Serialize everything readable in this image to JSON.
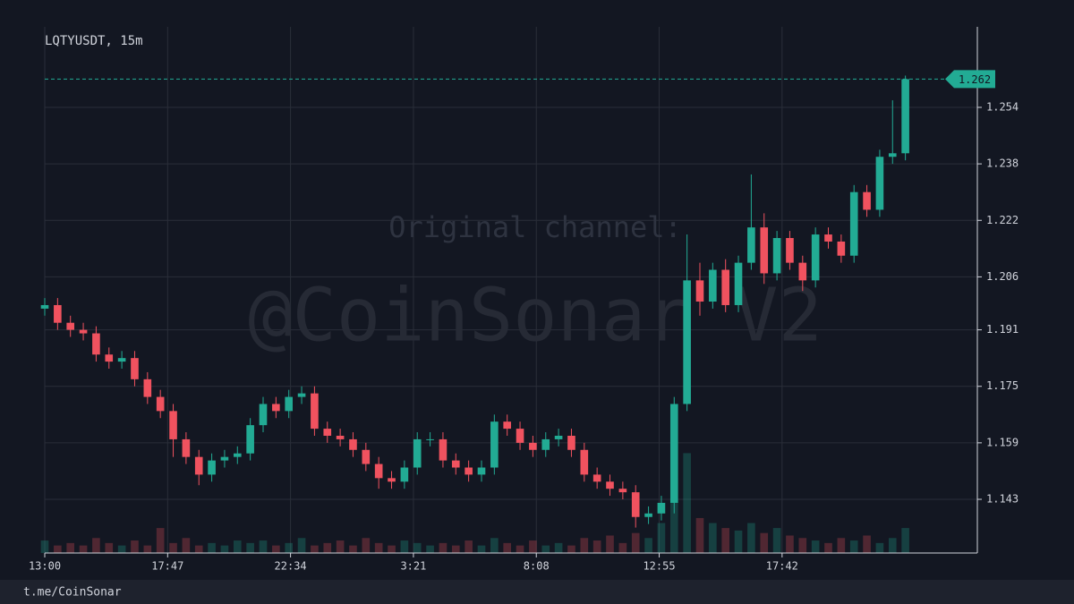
{
  "chart_data": {
    "type": "candlestick",
    "title": "LQTYUSDT, 15m",
    "watermark": [
      "Original channel:",
      "@CoinSonar V2"
    ],
    "footer": "t.me/CoinSonar",
    "up_color": "#22ab94",
    "down_color": "#f0525f",
    "grid": true,
    "categories": [
      null,
      null,
      null,
      null,
      null,
      null,
      null,
      null,
      null,
      null,
      null,
      null,
      null,
      null,
      null,
      null,
      null,
      null,
      null,
      null,
      null,
      null,
      null,
      null,
      null,
      null,
      null,
      null,
      null,
      null,
      null,
      null,
      null,
      null,
      null,
      null,
      null,
      null,
      null,
      null,
      null,
      null,
      null,
      null,
      null,
      null,
      null,
      null,
      null,
      null,
      null,
      null,
      null,
      null,
      null,
      null,
      null,
      null,
      null,
      null,
      null,
      null,
      null,
      null,
      null,
      null,
      null,
      null
    ],
    "open": [
      1.197,
      1.198,
      1.193,
      1.191,
      1.19,
      1.184,
      1.182,
      1.183,
      1.177,
      1.172,
      1.168,
      1.16,
      1.155,
      1.15,
      1.154,
      1.155,
      1.156,
      1.164,
      1.17,
      1.168,
      1.172,
      1.173,
      1.163,
      1.161,
      1.16,
      1.157,
      1.153,
      1.149,
      1.148,
      1.152,
      1.16,
      1.16,
      1.154,
      1.152,
      1.15,
      1.152,
      1.165,
      1.163,
      1.159,
      1.157,
      1.16,
      1.161,
      1.157,
      1.15,
      1.148,
      1.146,
      1.145,
      1.138,
      1.139,
      1.142,
      1.17,
      1.205,
      1.199,
      1.208,
      1.198,
      1.21,
      1.22,
      1.207,
      1.217,
      1.21,
      1.205,
      1.218,
      1.216,
      1.212,
      1.23,
      1.225,
      1.24,
      1.241
    ],
    "high": [
      1.2,
      1.2,
      1.195,
      1.193,
      1.192,
      1.186,
      1.185,
      1.185,
      1.179,
      1.174,
      1.17,
      1.162,
      1.157,
      1.156,
      1.157,
      1.158,
      1.166,
      1.172,
      1.172,
      1.174,
      1.175,
      1.175,
      1.165,
      1.163,
      1.162,
      1.159,
      1.155,
      1.151,
      1.154,
      1.162,
      1.162,
      1.162,
      1.156,
      1.154,
      1.154,
      1.167,
      1.167,
      1.165,
      1.161,
      1.162,
      1.163,
      1.163,
      1.159,
      1.152,
      1.15,
      1.148,
      1.147,
      1.141,
      1.144,
      1.172,
      1.218,
      1.21,
      1.21,
      1.211,
      1.212,
      1.235,
      1.224,
      1.219,
      1.219,
      1.212,
      1.22,
      1.22,
      1.218,
      1.232,
      1.232,
      1.242,
      1.256,
      1.263
    ],
    "low": [
      1.195,
      1.191,
      1.189,
      1.188,
      1.182,
      1.18,
      1.18,
      1.175,
      1.17,
      1.166,
      1.155,
      1.153,
      1.147,
      1.148,
      1.152,
      1.153,
      1.154,
      1.162,
      1.166,
      1.166,
      1.17,
      1.161,
      1.159,
      1.158,
      1.155,
      1.151,
      1.146,
      1.146,
      1.146,
      1.15,
      1.158,
      1.152,
      1.15,
      1.148,
      1.148,
      1.15,
      1.161,
      1.157,
      1.155,
      1.155,
      1.158,
      1.155,
      1.148,
      1.146,
      1.144,
      1.143,
      1.135,
      1.136,
      1.137,
      1.139,
      1.168,
      1.195,
      1.197,
      1.196,
      1.196,
      1.208,
      1.204,
      1.205,
      1.208,
      1.202,
      1.203,
      1.214,
      1.21,
      1.21,
      1.223,
      1.223,
      1.238,
      1.239
    ],
    "close": [
      1.198,
      1.193,
      1.191,
      1.19,
      1.184,
      1.182,
      1.183,
      1.177,
      1.172,
      1.168,
      1.16,
      1.155,
      1.15,
      1.154,
      1.155,
      1.156,
      1.164,
      1.17,
      1.168,
      1.172,
      1.173,
      1.163,
      1.161,
      1.16,
      1.157,
      1.153,
      1.149,
      1.148,
      1.152,
      1.16,
      1.16,
      1.154,
      1.152,
      1.15,
      1.152,
      1.165,
      1.163,
      1.159,
      1.157,
      1.16,
      1.161,
      1.157,
      1.15,
      1.148,
      1.146,
      1.145,
      1.138,
      1.139,
      1.142,
      1.17,
      1.205,
      1.199,
      1.208,
      1.198,
      1.21,
      1.22,
      1.207,
      1.217,
      1.21,
      1.205,
      1.218,
      1.216,
      1.212,
      1.23,
      1.225,
      1.24,
      1.241,
      1.262
    ],
    "volume": [
      5,
      3,
      4,
      3,
      6,
      4,
      3,
      5,
      3,
      10,
      4,
      6,
      3,
      4,
      3,
      5,
      4,
      5,
      3,
      4,
      6,
      3,
      4,
      5,
      3,
      6,
      4,
      3,
      5,
      4,
      3,
      4,
      3,
      5,
      3,
      6,
      4,
      3,
      5,
      3,
      4,
      3,
      6,
      5,
      7,
      4,
      8,
      6,
      12,
      30,
      40,
      14,
      12,
      10,
      9,
      12,
      8,
      10,
      7,
      6,
      5,
      4,
      6,
      5,
      7,
      4,
      6,
      10
    ],
    "vlim": [
      0,
      200
    ],
    "last_price": 1.262,
    "ylim": [
      1.1278,
      1.2692
    ],
    "yticks": [
      1.143,
      1.159,
      1.175,
      1.191,
      1.206,
      1.222,
      1.238,
      1.254
    ],
    "xlim": [
      0,
      72.6
    ],
    "xticks": [
      {
        "value": 0,
        "label": "13:00"
      },
      {
        "value": 9.567,
        "label": "17:47"
      },
      {
        "value": 19.133,
        "label": "22:34"
      },
      {
        "value": 28.7,
        "label": "3:21"
      },
      {
        "value": 38.267,
        "label": "8:08"
      },
      {
        "value": 47.833,
        "label": "12:55"
      },
      {
        "value": 57.4,
        "label": "17:42"
      }
    ]
  }
}
